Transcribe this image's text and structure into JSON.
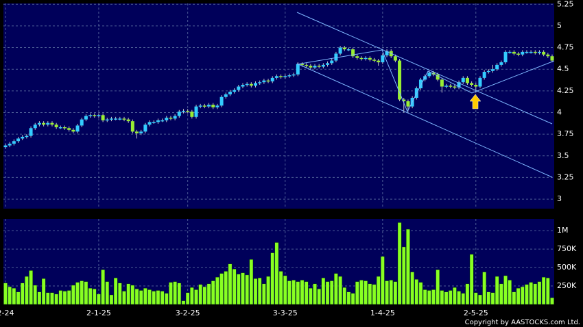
{
  "chart_data": {
    "type": "candlestick",
    "copyright": "Copyright by AASTOCKS.com Ltd.",
    "categories": [
      "2-24",
      null,
      null,
      null,
      null,
      null,
      null,
      null,
      null,
      null,
      null,
      null,
      null,
      null,
      null,
      null,
      null,
      null,
      null,
      null,
      null,
      null,
      "2-1-25",
      null,
      null,
      null,
      null,
      null,
      null,
      null,
      null,
      null,
      null,
      null,
      null,
      null,
      null,
      null,
      null,
      null,
      null,
      null,
      null,
      "3-2-25",
      null,
      null,
      null,
      null,
      null,
      null,
      null,
      null,
      null,
      null,
      null,
      null,
      null,
      null,
      null,
      null,
      null,
      null,
      null,
      null,
      null,
      null,
      "3-3-25",
      null,
      null,
      null,
      null,
      null,
      null,
      null,
      null,
      null,
      null,
      null,
      null,
      null,
      null,
      null,
      null,
      null,
      null,
      null,
      null,
      null,
      null,
      "1-4-25",
      null,
      null,
      null,
      null,
      null,
      null,
      null,
      null,
      null,
      null,
      null,
      null,
      null,
      null,
      null,
      null,
      null,
      null,
      null,
      null,
      null,
      "2-5-25",
      null,
      null,
      null,
      null,
      null,
      null,
      null,
      null,
      null,
      null,
      null,
      null,
      null,
      null,
      null,
      null,
      null,
      null
    ],
    "open": [
      3.6,
      3.62,
      3.64,
      3.67,
      3.7,
      3.72,
      3.73,
      3.82,
      3.86,
      3.88,
      3.86,
      3.88,
      3.86,
      3.83,
      3.83,
      3.82,
      3.8,
      3.78,
      3.85,
      3.92,
      3.96,
      3.97,
      3.96,
      3.97,
      3.91,
      3.92,
      3.93,
      3.93,
      3.93,
      3.92,
      3.9,
      3.78,
      3.76,
      3.78,
      3.86,
      3.89,
      3.89,
      3.91,
      3.91,
      3.94,
      3.93,
      3.96,
      4.01,
      4.02,
      4.01,
      3.95,
      4.07,
      4.08,
      4.07,
      4.09,
      4.06,
      4.08,
      4.18,
      4.21,
      4.24,
      4.26,
      4.3,
      4.32,
      4.33,
      4.31,
      4.34,
      4.35,
      4.37,
      4.36,
      4.4,
      4.42,
      4.41,
      4.42,
      4.43,
      4.44,
      4.56,
      4.55,
      4.54,
      4.52,
      4.54,
      4.53,
      4.55,
      4.57,
      4.6,
      4.68,
      4.75,
      4.73,
      4.73,
      4.65,
      4.63,
      4.62,
      4.63,
      4.61,
      4.6,
      4.58,
      4.66,
      4.71,
      4.65,
      4.6,
      4.15,
      4.13,
      4.07,
      4.17,
      4.28,
      4.38,
      4.42,
      4.46,
      4.44,
      4.38,
      4.3,
      4.31,
      4.3,
      4.29,
      4.35,
      4.4,
      4.34,
      4.32,
      4.3,
      4.4,
      4.47,
      4.48,
      4.5,
      4.55,
      4.58,
      4.7,
      4.7,
      4.68,
      4.67,
      4.7,
      4.7,
      4.7,
      4.69,
      4.7,
      4.67,
      4.65
    ],
    "high": [
      3.64,
      3.66,
      3.69,
      3.72,
      3.74,
      3.75,
      3.84,
      3.88,
      3.9,
      3.9,
      3.9,
      3.9,
      3.88,
      3.85,
      3.85,
      3.84,
      3.82,
      3.87,
      3.94,
      3.98,
      3.99,
      3.99,
      3.99,
      3.99,
      3.94,
      3.95,
      3.95,
      3.95,
      3.95,
      3.94,
      3.92,
      3.8,
      3.8,
      3.88,
      3.91,
      3.91,
      3.93,
      3.93,
      3.96,
      3.96,
      3.98,
      4.03,
      4.04,
      4.04,
      4.03,
      4.09,
      4.1,
      4.1,
      4.11,
      4.11,
      4.1,
      4.2,
      4.23,
      4.26,
      4.28,
      4.32,
      4.34,
      4.35,
      4.35,
      4.36,
      4.37,
      4.39,
      4.39,
      4.42,
      4.44,
      4.44,
      4.44,
      4.45,
      4.46,
      4.58,
      4.58,
      4.57,
      4.56,
      4.56,
      4.56,
      4.57,
      4.59,
      4.62,
      4.7,
      4.77,
      4.77,
      4.75,
      4.75,
      4.67,
      4.65,
      4.65,
      4.65,
      4.63,
      4.62,
      4.68,
      4.73,
      4.73,
      4.67,
      4.62,
      4.17,
      4.15,
      4.19,
      4.3,
      4.4,
      4.44,
      4.48,
      4.48,
      4.46,
      4.4,
      4.33,
      4.33,
      4.32,
      4.37,
      4.42,
      4.42,
      4.36,
      4.34,
      4.42,
      4.49,
      4.5,
      4.55,
      4.57,
      4.6,
      4.72,
      4.72,
      4.72,
      4.7,
      4.72,
      4.72,
      4.72,
      4.72,
      4.72,
      4.72,
      4.69,
      4.67
    ],
    "low": [
      3.58,
      3.6,
      3.62,
      3.65,
      3.68,
      3.7,
      3.71,
      3.8,
      3.84,
      3.84,
      3.84,
      3.84,
      3.81,
      3.81,
      3.8,
      3.78,
      3.76,
      3.76,
      3.83,
      3.9,
      3.94,
      3.94,
      3.94,
      3.89,
      3.89,
      3.9,
      3.91,
      3.91,
      3.9,
      3.88,
      3.76,
      3.7,
      3.74,
      3.76,
      3.84,
      3.87,
      3.87,
      3.89,
      3.89,
      3.91,
      3.91,
      3.94,
      3.99,
      3.99,
      3.93,
      3.93,
      4.05,
      4.05,
      4.05,
      4.04,
      4.04,
      4.06,
      4.16,
      4.19,
      4.22,
      4.24,
      4.28,
      4.3,
      4.29,
      4.29,
      4.32,
      4.33,
      4.34,
      4.34,
      4.38,
      4.39,
      4.39,
      4.4,
      4.41,
      4.42,
      4.53,
      4.52,
      4.5,
      4.5,
      4.51,
      4.51,
      4.53,
      4.55,
      4.58,
      4.66,
      4.71,
      4.71,
      4.63,
      4.61,
      4.6,
      4.6,
      4.59,
      4.58,
      4.54,
      4.56,
      4.64,
      4.63,
      4.58,
      4.13,
      4.0,
      4.01,
      4.05,
      4.15,
      4.26,
      4.36,
      4.4,
      4.42,
      4.36,
      4.23,
      4.28,
      4.28,
      4.27,
      4.27,
      4.33,
      4.32,
      4.3,
      4.23,
      4.28,
      4.38,
      4.45,
      4.46,
      4.48,
      4.53,
      4.56,
      4.68,
      4.66,
      4.65,
      4.65,
      4.68,
      4.68,
      4.67,
      4.67,
      4.65,
      4.63,
      4.58
    ],
    "close": [
      3.62,
      3.64,
      3.67,
      3.7,
      3.72,
      3.73,
      3.82,
      3.86,
      3.88,
      3.86,
      3.88,
      3.86,
      3.83,
      3.83,
      3.82,
      3.8,
      3.78,
      3.85,
      3.92,
      3.96,
      3.97,
      3.96,
      3.97,
      3.91,
      3.92,
      3.93,
      3.93,
      3.93,
      3.92,
      3.9,
      3.78,
      3.76,
      3.78,
      3.86,
      3.89,
      3.89,
      3.91,
      3.91,
      3.94,
      3.93,
      3.96,
      4.01,
      4.02,
      4.01,
      3.95,
      4.07,
      4.08,
      4.07,
      4.09,
      4.06,
      4.08,
      4.18,
      4.21,
      4.24,
      4.26,
      4.3,
      4.32,
      4.33,
      4.31,
      4.34,
      4.35,
      4.37,
      4.36,
      4.4,
      4.42,
      4.41,
      4.42,
      4.43,
      4.44,
      4.56,
      4.55,
      4.54,
      4.52,
      4.54,
      4.53,
      4.55,
      4.57,
      4.6,
      4.68,
      4.75,
      4.73,
      4.73,
      4.65,
      4.63,
      4.62,
      4.63,
      4.61,
      4.6,
      4.58,
      4.66,
      4.71,
      4.65,
      4.6,
      4.15,
      4.13,
      4.07,
      4.17,
      4.28,
      4.38,
      4.42,
      4.46,
      4.44,
      4.38,
      4.3,
      4.31,
      4.3,
      4.29,
      4.35,
      4.4,
      4.34,
      4.32,
      4.3,
      4.4,
      4.47,
      4.48,
      4.5,
      4.55,
      4.58,
      4.7,
      4.7,
      4.68,
      4.67,
      4.7,
      4.7,
      4.7,
      4.69,
      4.7,
      4.67,
      4.65,
      4.6
    ],
    "up_color": "#33ccff",
    "down_color": "#99ee33",
    "ylim": [
      2.89,
      5.26
    ],
    "yticks": [
      5.25,
      5,
      4.75,
      4.5,
      4.25,
      4,
      3.75,
      3.5,
      3.25,
      3
    ],
    "grid": true,
    "volume": {
      "color": "#88ff22",
      "values": [
        290000,
        240000,
        220000,
        170000,
        290000,
        380000,
        460000,
        260000,
        170000,
        350000,
        160000,
        160000,
        140000,
        190000,
        180000,
        190000,
        260000,
        300000,
        320000,
        310000,
        220000,
        210000,
        140000,
        470000,
        310000,
        130000,
        360000,
        290000,
        180000,
        280000,
        260000,
        210000,
        190000,
        220000,
        200000,
        180000,
        190000,
        180000,
        150000,
        300000,
        310000,
        290000,
        50000,
        160000,
        230000,
        200000,
        270000,
        240000,
        280000,
        320000,
        370000,
        420000,
        450000,
        550000,
        480000,
        410000,
        430000,
        400000,
        610000,
        350000,
        360000,
        280000,
        380000,
        700000,
        840000,
        450000,
        390000,
        320000,
        330000,
        310000,
        330000,
        310000,
        220000,
        280000,
        210000,
        360000,
        310000,
        320000,
        420000,
        380000,
        230000,
        170000,
        150000,
        310000,
        330000,
        320000,
        280000,
        270000,
        380000,
        650000,
        320000,
        330000,
        310000,
        1110000,
        780000,
        1020000,
        440000,
        340000,
        300000,
        200000,
        190000,
        200000,
        470000,
        190000,
        170000,
        190000,
        230000,
        180000,
        150000,
        280000,
        680000,
        160000,
        130000,
        440000,
        170000,
        160000,
        380000,
        280000,
        390000,
        330000,
        170000,
        220000,
        240000,
        270000,
        300000,
        280000,
        310000,
        370000,
        360000,
        90000
      ],
      "ylim": [
        0,
        1160000
      ],
      "yticks": [
        {
          "value": 1000000,
          "label": "1M"
        },
        {
          "value": 750000,
          "label": "750K"
        },
        {
          "value": 500000,
          "label": "500K"
        },
        {
          "value": 250000,
          "label": "250K"
        }
      ]
    }
  }
}
